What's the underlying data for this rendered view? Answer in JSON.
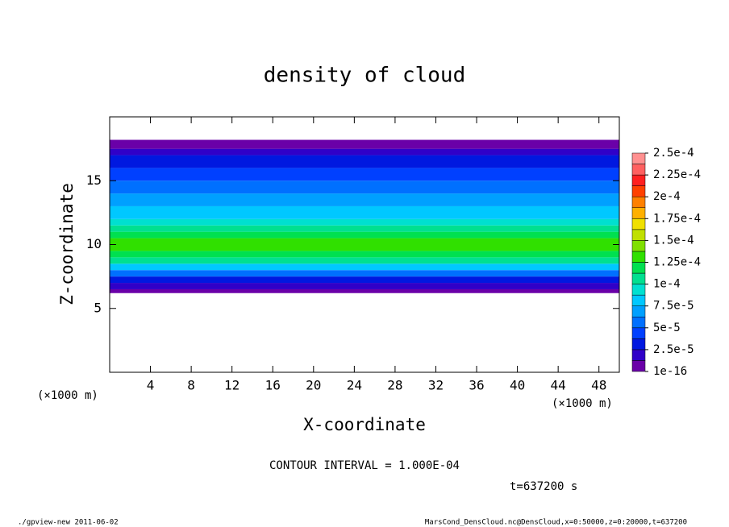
{
  "chart_data": {
    "type": "profile-heatmap",
    "title": "density of cloud",
    "x_label": "X-coordinate",
    "y_label": "Z-coordinate",
    "x_unit": "(×1000 m)",
    "y_unit": "(×1000 m)",
    "xlim": [
      0,
      50
    ],
    "xticks": [
      4,
      8,
      12,
      16,
      20,
      24,
      28,
      32,
      36,
      40,
      44,
      48
    ],
    "ylim": [
      0,
      20
    ],
    "yticks": [
      5,
      10,
      15
    ],
    "z_bins": [
      6.2,
      6.5,
      7,
      7.5,
      8,
      8.5,
      9,
      9.5,
      10,
      10.5,
      11,
      11.5,
      12,
      13,
      14,
      15,
      16,
      17,
      17.5,
      18.2
    ],
    "values": [
      5e-06,
      1.5e-05,
      3e-05,
      6e-05,
      8e-05,
      0.000105,
      0.00012,
      0.00013,
      0.00013,
      0.00012,
      0.000105,
      9e-05,
      7.5e-05,
      6.5e-05,
      5.5e-05,
      4.5e-05,
      3e-05,
      1.5e-05,
      5e-06
    ],
    "colorbar": {
      "levels": [
        {
          "value": 1e-16,
          "label": "1e-16"
        },
        {
          "value": 2.5e-05,
          "label": "2.5e-5"
        },
        {
          "value": 5e-05,
          "label": "5e-5"
        },
        {
          "value": 7.5e-05,
          "label": "7.5e-5"
        },
        {
          "value": 0.0001,
          "label": "1e-4"
        },
        {
          "value": 0.000125,
          "label": "1.25e-4"
        },
        {
          "value": 0.00015,
          "label": "1.5e-4"
        },
        {
          "value": 0.000175,
          "label": "1.75e-4"
        },
        {
          "value": 0.0002,
          "label": "2e-4"
        },
        {
          "value": 0.000225,
          "label": "2.25e-4"
        },
        {
          "value": 0.00025,
          "label": "2.5e-4"
        }
      ],
      "colors": [
        "#6a00a8",
        "#3000c8",
        "#0018e0",
        "#0040ff",
        "#0070ff",
        "#00a0ff",
        "#00c8ff",
        "#00e0d0",
        "#00e090",
        "#00e050",
        "#30e000",
        "#80e000",
        "#c0e000",
        "#f0e000",
        "#ffb000",
        "#ff8000",
        "#ff4000",
        "#ff2020",
        "#ff6060",
        "#ff9090"
      ]
    },
    "contour_note": "CONTOUR INTERVAL = 1.000E-04",
    "time_label": "t=637200 s",
    "footer_left": "./gpview-new  2011-06-02",
    "footer_right": "MarsCond_DensCloud.nc@DensCloud,x=0:50000,z=0:20000,t=637200"
  }
}
